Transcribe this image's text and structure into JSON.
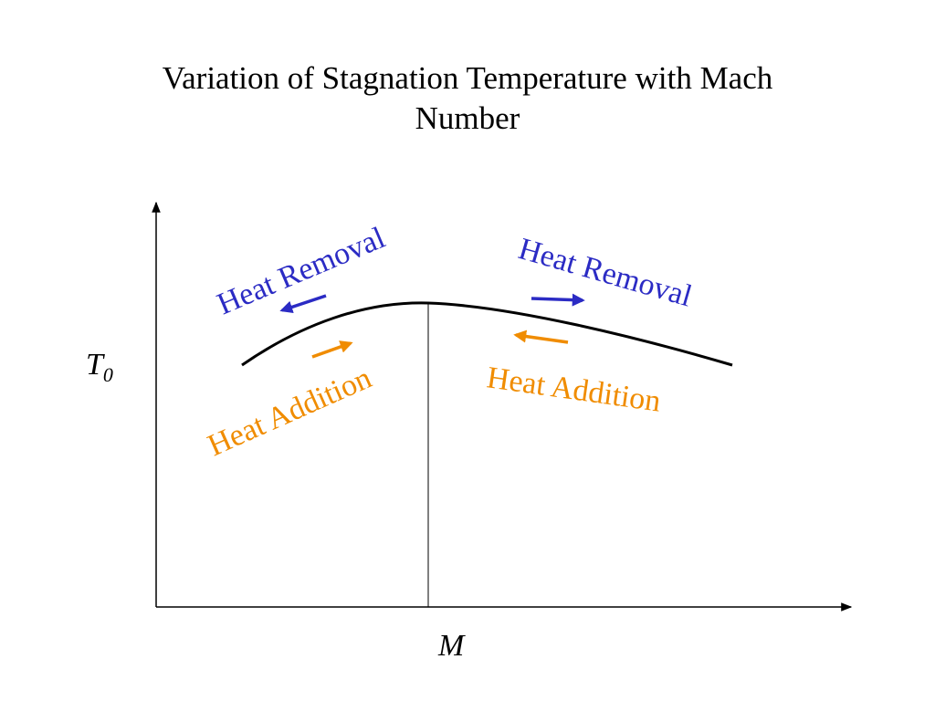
{
  "title": {
    "line1": "Variation of Stagnation Temperature with Mach",
    "line2": "Number"
  },
  "axes": {
    "y_label": "T",
    "y_subscript": "0",
    "x_label": "M"
  },
  "labels": {
    "left_removal": "Heat Removal",
    "right_removal": "Heat Removal",
    "left_addition": "Heat Addition",
    "right_addition": "Heat Addition"
  },
  "colors": {
    "removal": "#2b2bc4",
    "addition": "#f08c00",
    "axis": "#000000",
    "curve": "#000000"
  }
}
